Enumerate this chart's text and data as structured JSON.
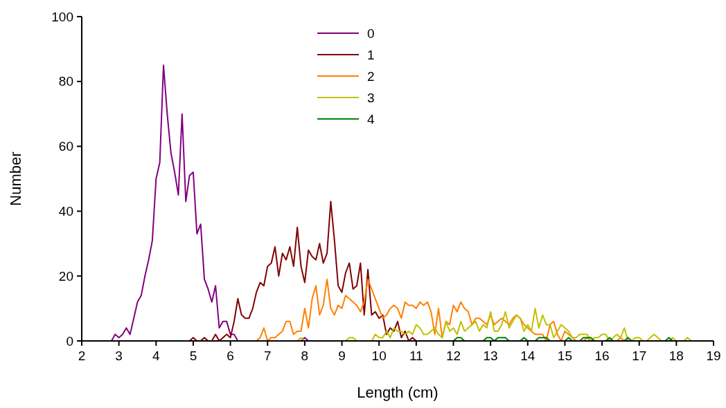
{
  "chart_data": {
    "type": "line",
    "xlabel": "Length (cm)",
    "ylabel": "Number",
    "xlim": [
      2,
      19
    ],
    "xticks": [
      2,
      3,
      4,
      5,
      6,
      7,
      8,
      9,
      10,
      11,
      12,
      13,
      14,
      15,
      16,
      17,
      18,
      19
    ],
    "ylim": [
      0,
      100
    ],
    "yticks": [
      0,
      20,
      40,
      60,
      80,
      100
    ],
    "grid": false,
    "legend": "top",
    "marker": "none",
    "line_style": "solid",
    "series": [
      {
        "name": "0",
        "color": "#800080",
        "x": [
          2.8,
          2.9,
          3.0,
          3.1,
          3.2,
          3.3,
          3.4,
          3.5,
          3.6,
          3.7,
          3.8,
          3.9,
          4.0,
          4.1,
          4.2,
          4.3,
          4.4,
          4.5,
          4.6,
          4.7,
          4.8,
          4.9,
          5.0,
          5.1,
          5.2,
          5.3,
          5.4,
          5.5,
          5.6,
          5.7,
          5.8,
          5.9,
          6.0,
          6.1,
          6.2,
          6.3,
          6.4,
          6.5,
          6.6,
          6.7,
          6.8,
          6.9,
          7.0,
          7.1,
          7.2,
          7.3,
          7.4,
          7.5,
          7.6,
          7.7,
          7.8,
          7.9,
          8.0,
          8.1
        ],
        "values": [
          0,
          2,
          1,
          2,
          4,
          2,
          7,
          12,
          14,
          20,
          25,
          31,
          50,
          55,
          85,
          70,
          58,
          52,
          45,
          70,
          43,
          51,
          52,
          33,
          36,
          19,
          16,
          12,
          17,
          4,
          6,
          6,
          2,
          2,
          0,
          0,
          0,
          0,
          0,
          0,
          0,
          0,
          0,
          0,
          0,
          0,
          0,
          0,
          0,
          0,
          0,
          0,
          1,
          0
        ]
      },
      {
        "name": "1",
        "color": "#800000",
        "x": [
          4.9,
          5.0,
          5.1,
          5.2,
          5.3,
          5.4,
          5.5,
          5.6,
          5.7,
          5.8,
          5.9,
          6.0,
          6.1,
          6.2,
          6.3,
          6.4,
          6.5,
          6.6,
          6.7,
          6.8,
          6.9,
          7.0,
          7.1,
          7.2,
          7.3,
          7.4,
          7.5,
          7.6,
          7.7,
          7.8,
          7.9,
          8.0,
          8.1,
          8.2,
          8.3,
          8.4,
          8.5,
          8.6,
          8.7,
          8.8,
          8.9,
          9.0,
          9.1,
          9.2,
          9.3,
          9.4,
          9.5,
          9.6,
          9.7,
          9.8,
          9.9,
          10.0,
          10.1,
          10.2,
          10.3,
          10.4,
          10.5,
          10.6,
          10.7,
          10.8,
          10.9,
          11.0
        ],
        "values": [
          0,
          1,
          0,
          0,
          1,
          0,
          0,
          2,
          0,
          1,
          2,
          1,
          6,
          13,
          8,
          7,
          7,
          10,
          15,
          18,
          17,
          23,
          24,
          29,
          20,
          27,
          25,
          29,
          23,
          35,
          23,
          18,
          28,
          26,
          25,
          30,
          24,
          27,
          43,
          31,
          17,
          15,
          21,
          24,
          16,
          17,
          24,
          8,
          22,
          8,
          9,
          7,
          8,
          2,
          4,
          3,
          6,
          1,
          3,
          0,
          1,
          0
        ]
      },
      {
        "name": "2",
        "color": "#ff8000",
        "x": [
          6.7,
          6.8,
          6.9,
          7.0,
          7.1,
          7.2,
          7.3,
          7.4,
          7.5,
          7.6,
          7.7,
          7.8,
          7.9,
          8.0,
          8.1,
          8.2,
          8.3,
          8.4,
          8.5,
          8.6,
          8.7,
          8.8,
          8.9,
          9.0,
          9.1,
          9.2,
          9.3,
          9.4,
          9.5,
          9.6,
          9.7,
          9.8,
          9.9,
          10.0,
          10.1,
          10.2,
          10.3,
          10.4,
          10.5,
          10.6,
          10.7,
          10.8,
          10.9,
          11.0,
          11.1,
          11.2,
          11.3,
          11.4,
          11.5,
          11.6,
          11.7,
          11.8,
          11.9,
          12.0,
          12.1,
          12.2,
          12.3,
          12.4,
          12.5,
          12.6,
          12.7,
          12.8,
          12.9,
          13.0,
          13.1,
          13.2,
          13.3,
          13.4,
          13.5,
          13.6,
          13.7,
          13.8,
          13.9,
          14.0,
          14.1,
          14.2,
          14.3,
          14.4,
          14.5,
          14.6,
          14.7,
          14.8,
          14.9,
          15.0,
          15.1,
          15.2,
          15.3,
          15.4,
          15.5,
          15.6,
          15.7,
          15.8,
          15.9,
          16.0,
          16.1,
          16.2,
          16.3,
          16.4,
          16.5,
          16.6,
          16.7
        ],
        "values": [
          0,
          1,
          4,
          0,
          1,
          1,
          2,
          3,
          6,
          6,
          2,
          3,
          3,
          10,
          4,
          13,
          17,
          8,
          11,
          19,
          10,
          8,
          11,
          10,
          14,
          13,
          12,
          11,
          9,
          12,
          19,
          16,
          13,
          10,
          7,
          8,
          10,
          11,
          10,
          7,
          12,
          11,
          11,
          10,
          12,
          11,
          12,
          9,
          2,
          10,
          1,
          6,
          5,
          11,
          9,
          12,
          10,
          9,
          5,
          7,
          7,
          6,
          5,
          8,
          5,
          6,
          7,
          6,
          5,
          7,
          8,
          7,
          5,
          4,
          3,
          2,
          2,
          2,
          0,
          5,
          6,
          2,
          0,
          3,
          2,
          1,
          0,
          0,
          0,
          1,
          0,
          0,
          0,
          0,
          0,
          0,
          0,
          0,
          1,
          0,
          0
        ]
      },
      {
        "name": "3",
        "color": "#c0c000",
        "x": [
          7.8,
          7.9,
          8.0,
          8.1,
          8.2,
          8.3,
          8.4,
          8.5,
          8.6,
          8.7,
          8.8,
          8.9,
          9.0,
          9.1,
          9.2,
          9.3,
          9.4,
          9.5,
          9.6,
          9.7,
          9.8,
          9.9,
          10.0,
          10.1,
          10.2,
          10.3,
          10.4,
          10.5,
          10.6,
          10.7,
          10.8,
          10.9,
          11.0,
          11.1,
          11.2,
          11.3,
          11.4,
          11.5,
          11.6,
          11.7,
          11.8,
          11.9,
          12.0,
          12.1,
          12.2,
          12.3,
          12.4,
          12.5,
          12.6,
          12.7,
          12.8,
          12.9,
          13.0,
          13.1,
          13.2,
          13.3,
          13.4,
          13.5,
          13.6,
          13.7,
          13.8,
          13.9,
          14.0,
          14.1,
          14.2,
          14.3,
          14.4,
          14.5,
          14.6,
          14.7,
          14.8,
          14.9,
          15.0,
          15.1,
          15.2,
          15.3,
          15.4,
          15.5,
          15.6,
          15.7,
          15.8,
          15.9,
          16.0,
          16.1,
          16.2,
          16.3,
          16.4,
          16.5,
          16.6,
          16.7,
          16.8,
          16.9,
          17.0,
          17.1,
          17.2,
          17.3,
          17.4,
          17.5,
          17.6,
          17.7,
          17.8,
          17.9,
          18.0,
          18.1,
          18.2,
          18.3,
          18.4
        ],
        "values": [
          0,
          1,
          0,
          0,
          0,
          0,
          0,
          0,
          0,
          0,
          0,
          0,
          0,
          0,
          1,
          1,
          0,
          0,
          0,
          0,
          0,
          2,
          1,
          1,
          3,
          1,
          4,
          3,
          3,
          2,
          3,
          2,
          5,
          4,
          2,
          2,
          3,
          4,
          2,
          1,
          6,
          3,
          4,
          2,
          6,
          3,
          4,
          5,
          6,
          3,
          5,
          4,
          9,
          3,
          3,
          5,
          9,
          4,
          6,
          8,
          7,
          3,
          5,
          3,
          10,
          4,
          8,
          5,
          5,
          1,
          3,
          5,
          4,
          3,
          1,
          1,
          2,
          2,
          2,
          0,
          1,
          1,
          2,
          2,
          0,
          1,
          2,
          1,
          4,
          0,
          0,
          1,
          1,
          0,
          0,
          1,
          2,
          1,
          0,
          0,
          0,
          1,
          0,
          0,
          0,
          1,
          0
        ]
      },
      {
        "name": "4",
        "color": "#008000",
        "x": [
          12.0,
          12.1,
          12.2,
          12.3,
          12.4,
          12.5,
          12.6,
          12.7,
          12.8,
          12.9,
          13.0,
          13.1,
          13.2,
          13.3,
          13.4,
          13.5,
          13.6,
          13.7,
          13.8,
          13.9,
          14.0,
          14.1,
          14.2,
          14.3,
          14.4,
          14.5,
          14.6,
          14.7,
          14.8,
          14.9,
          15.0,
          15.1,
          15.2,
          15.3,
          15.4,
          15.5,
          15.6,
          15.7,
          15.8,
          15.9,
          16.0,
          16.1,
          16.2,
          16.3,
          16.4,
          16.5,
          16.6,
          16.7,
          16.8,
          16.9,
          17.0,
          17.1,
          17.2,
          17.3,
          17.4,
          17.5,
          17.6,
          17.7,
          17.8,
          17.9,
          18.0
        ],
        "values": [
          0,
          1,
          1,
          0,
          0,
          0,
          0,
          0,
          0,
          1,
          1,
          0,
          1,
          1,
          1,
          0,
          0,
          0,
          0,
          1,
          0,
          0,
          0,
          1,
          1,
          1,
          0,
          0,
          0,
          0,
          0,
          1,
          0,
          0,
          0,
          1,
          1,
          1,
          0,
          0,
          0,
          0,
          1,
          0,
          0,
          0,
          0,
          1,
          0,
          0,
          0,
          0,
          0,
          0,
          0,
          0,
          0,
          0,
          1,
          0,
          0
        ]
      }
    ]
  }
}
